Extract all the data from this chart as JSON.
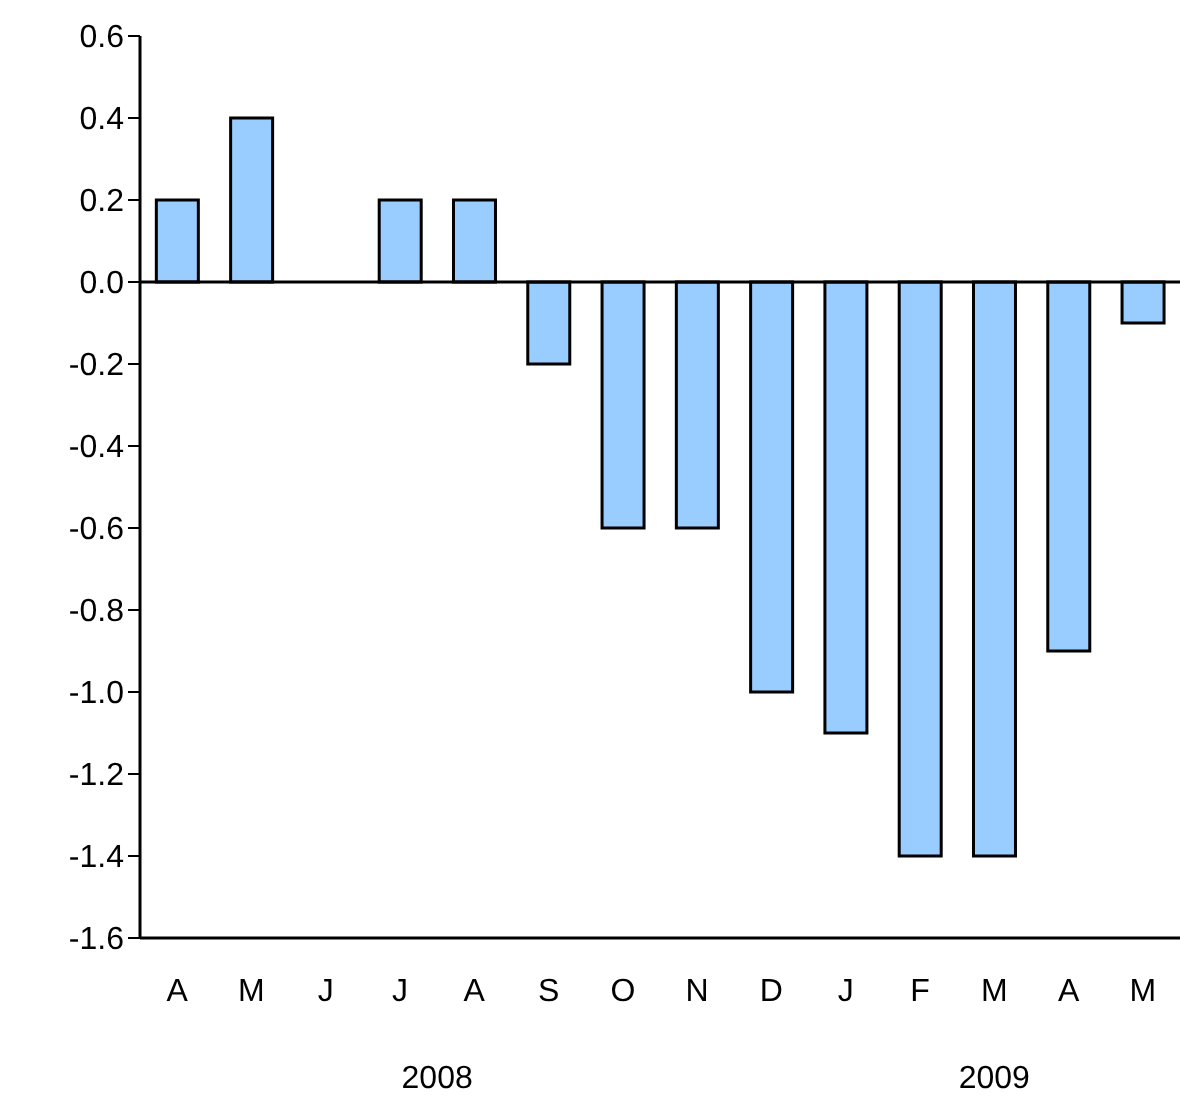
{
  "chart_data": {
    "type": "bar",
    "categories": [
      "A",
      "M",
      "J",
      "J",
      "A",
      "S",
      "O",
      "N",
      "D",
      "J",
      "F",
      "M",
      "A",
      "M"
    ],
    "values": [
      0.2,
      0.4,
      0,
      0.2,
      0.2,
      -0.2,
      -0.6,
      -0.6,
      -1.0,
      -1.1,
      -1.4,
      -1.4,
      -0.9,
      -0.1
    ],
    "color": "#99ccff",
    "ylim": [
      -1.6,
      0.6
    ],
    "yticks": [
      {
        "value": -1.6,
        "label": "-1.6"
      },
      {
        "value": -1.4,
        "label": "-1.4"
      },
      {
        "value": -1.2,
        "label": "-1.2"
      },
      {
        "value": -1.0,
        "label": "-1.0"
      },
      {
        "value": -0.8,
        "label": "-0.8"
      },
      {
        "value": -0.6,
        "label": "-0.6"
      },
      {
        "value": -0.4,
        "label": "-0.4"
      },
      {
        "value": -0.2,
        "label": "-0.2"
      },
      {
        "value": 0,
        "label": "0.0"
      },
      {
        "value": 0.2,
        "label": "0.2"
      },
      {
        "value": 0.4,
        "label": "0.4"
      },
      {
        "value": 0.6,
        "label": "0.6"
      }
    ],
    "annotations": [
      "2008",
      "2009"
    ]
  }
}
